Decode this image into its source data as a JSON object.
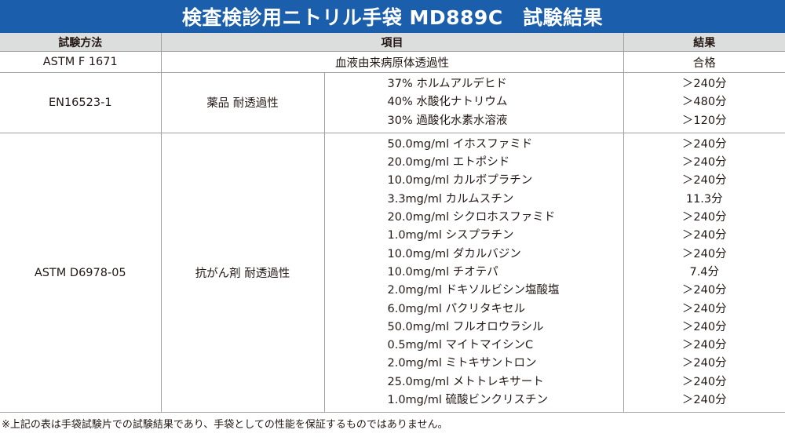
{
  "title": "検査検診用ニトリル手袋 MD889C　試験結果",
  "headers": {
    "method": "試験方法",
    "item": "項目",
    "result": "結果"
  },
  "rows": [
    {
      "method": "ASTM F 1671",
      "category": "血液由来病原体透過性",
      "result": "合格"
    }
  ],
  "groups": [
    {
      "method": "EN16523-1",
      "category": "薬品 耐透過性",
      "items": [
        "37% ホルムアルデヒド",
        "40% 水酸化ナトリウム",
        "30% 過酸化水素水溶液"
      ],
      "results": [
        "＞240分",
        "＞480分",
        "＞120分"
      ]
    },
    {
      "method": "ASTM D6978-05",
      "category": "抗がん剤 耐透過性",
      "items": [
        "50.0mg/ml イホスファミド",
        "20.0mg/ml エトポシド",
        "10.0mg/ml カルボプラチン",
        "3.3mg/ml カルムスチン",
        "20.0mg/ml シクロホスファミド",
        "1.0mg/ml シスプラチン",
        "10.0mg/ml ダカルバジン",
        "10.0mg/ml チオテパ",
        "2.0mg/ml ドキソルビシン塩酸塩",
        "6.0mg/ml パクリタキセル",
        "50.0mg/ml フルオロウラシル",
        "0.5mg/ml マイトマイシンC",
        "2.0mg/ml ミトキサントロン",
        "25.0mg/ml メトトレキサート",
        "1.0mg/ml 硫酸ビンクリスチン"
      ],
      "results": [
        "＞240分",
        "＞240分",
        "＞240分",
        "11.3分",
        "＞240分",
        "＞240分",
        "＞240分",
        "7.4分",
        "＞240分",
        "＞240分",
        "＞240分",
        "＞240分",
        "＞240分",
        "＞240分",
        "＞240分"
      ]
    }
  ],
  "footnote": "※上記の表は手袋試験片での試験結果であり、手袋としての性能を保証するものではありません。"
}
